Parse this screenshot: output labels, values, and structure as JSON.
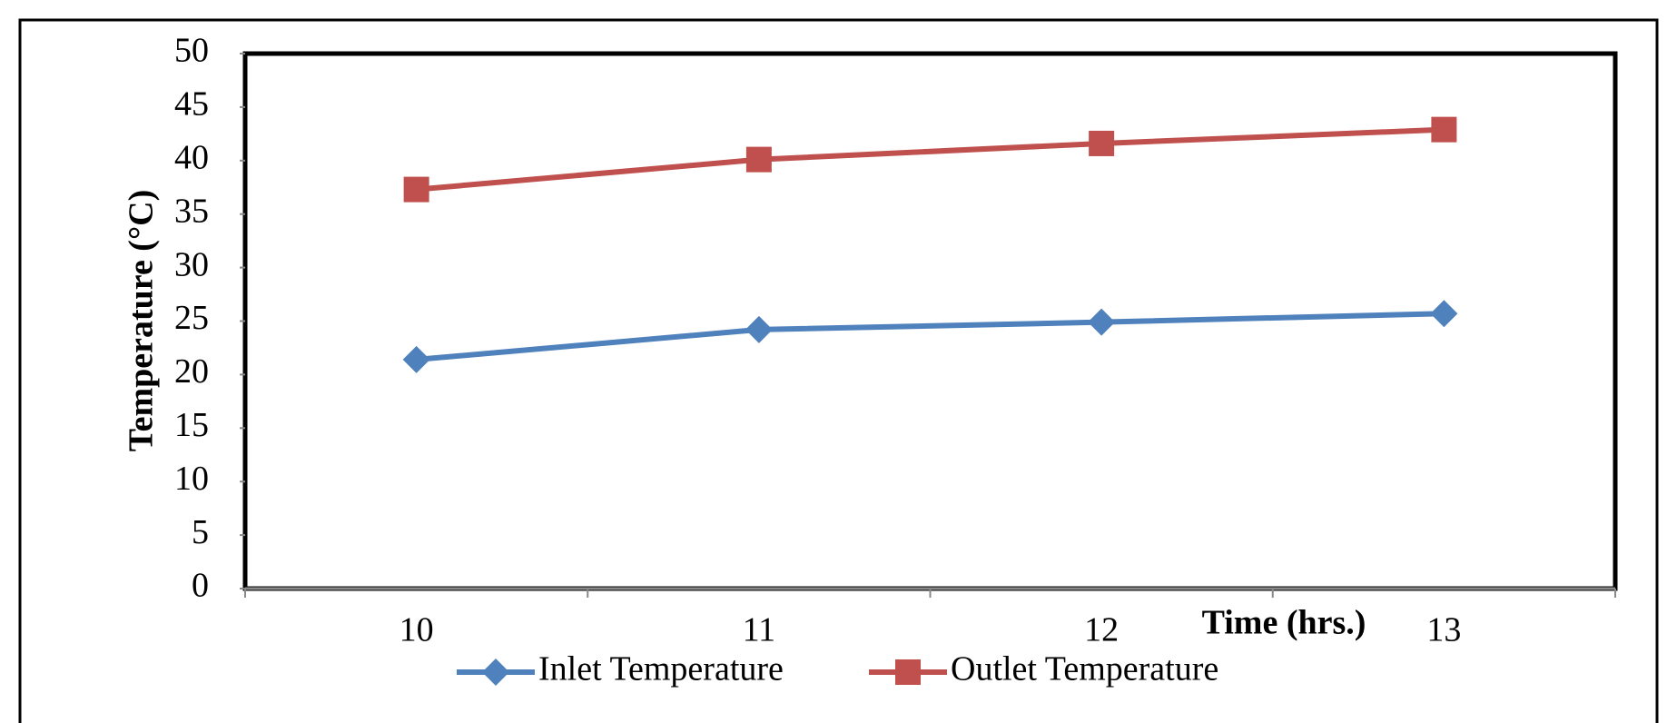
{
  "chart_data": {
    "type": "line",
    "x_label": "Time (hrs.)",
    "y_label": "Temperature (°C)",
    "categories": [
      "10",
      "11",
      "12",
      "13"
    ],
    "series": [
      {
        "name": "Inlet Temperature",
        "color": "#4f81bd",
        "marker": "diamond",
        "values": [
          21.4,
          24.2,
          24.9,
          25.7
        ]
      },
      {
        "name": "Outlet Temperature",
        "color": "#c0504d",
        "marker": "square",
        "values": [
          37.3,
          40.1,
          41.6,
          42.9
        ]
      }
    ],
    "ylim": [
      0,
      50
    ],
    "yticks": [
      0,
      5,
      10,
      15,
      20,
      25,
      30,
      35,
      40,
      45,
      50
    ],
    "grid": false
  }
}
